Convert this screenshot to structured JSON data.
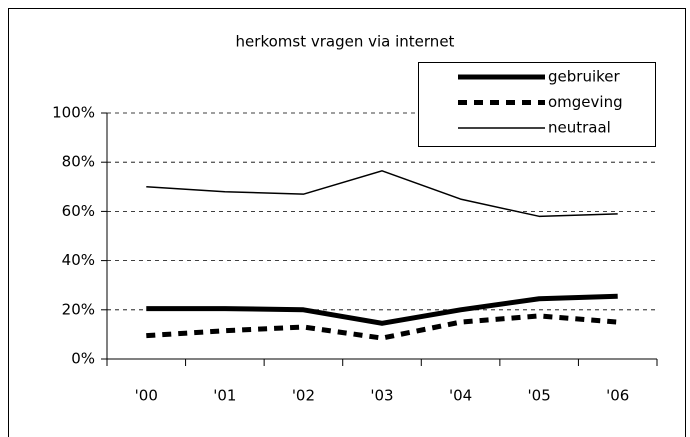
{
  "chart_data": {
    "type": "line",
    "title": "herkomst vragen via internet",
    "categories": [
      "'00",
      "'01",
      "'02",
      "'03",
      "'04",
      "'05",
      "'06"
    ],
    "series": [
      {
        "name": "gebruiker",
        "color": "#000000",
        "line_style": "solid",
        "line_width": 5,
        "values": [
          20.5,
          20.5,
          20,
          14.5,
          20,
          24.5,
          25.5
        ]
      },
      {
        "name": "omgeving",
        "color": "#000000",
        "line_style": "dashed",
        "line_width": 5,
        "values": [
          9.5,
          11.5,
          13,
          8.5,
          15,
          17.5,
          15
        ]
      },
      {
        "name": "neutraal",
        "color": "#000000",
        "line_style": "solid",
        "line_width": 1.5,
        "values": [
          70,
          68,
          67,
          76.5,
          65,
          58,
          59
        ]
      }
    ],
    "ylim": [
      0,
      100
    ],
    "yticks": [
      {
        "value": 0,
        "label": "0%"
      },
      {
        "value": 20,
        "label": "20%"
      },
      {
        "value": 40,
        "label": "40%"
      },
      {
        "value": 60,
        "label": "60%"
      },
      {
        "value": 80,
        "label": "80%"
      },
      {
        "value": 100,
        "label": "100%"
      }
    ],
    "grid": true,
    "legend": "upper right"
  }
}
